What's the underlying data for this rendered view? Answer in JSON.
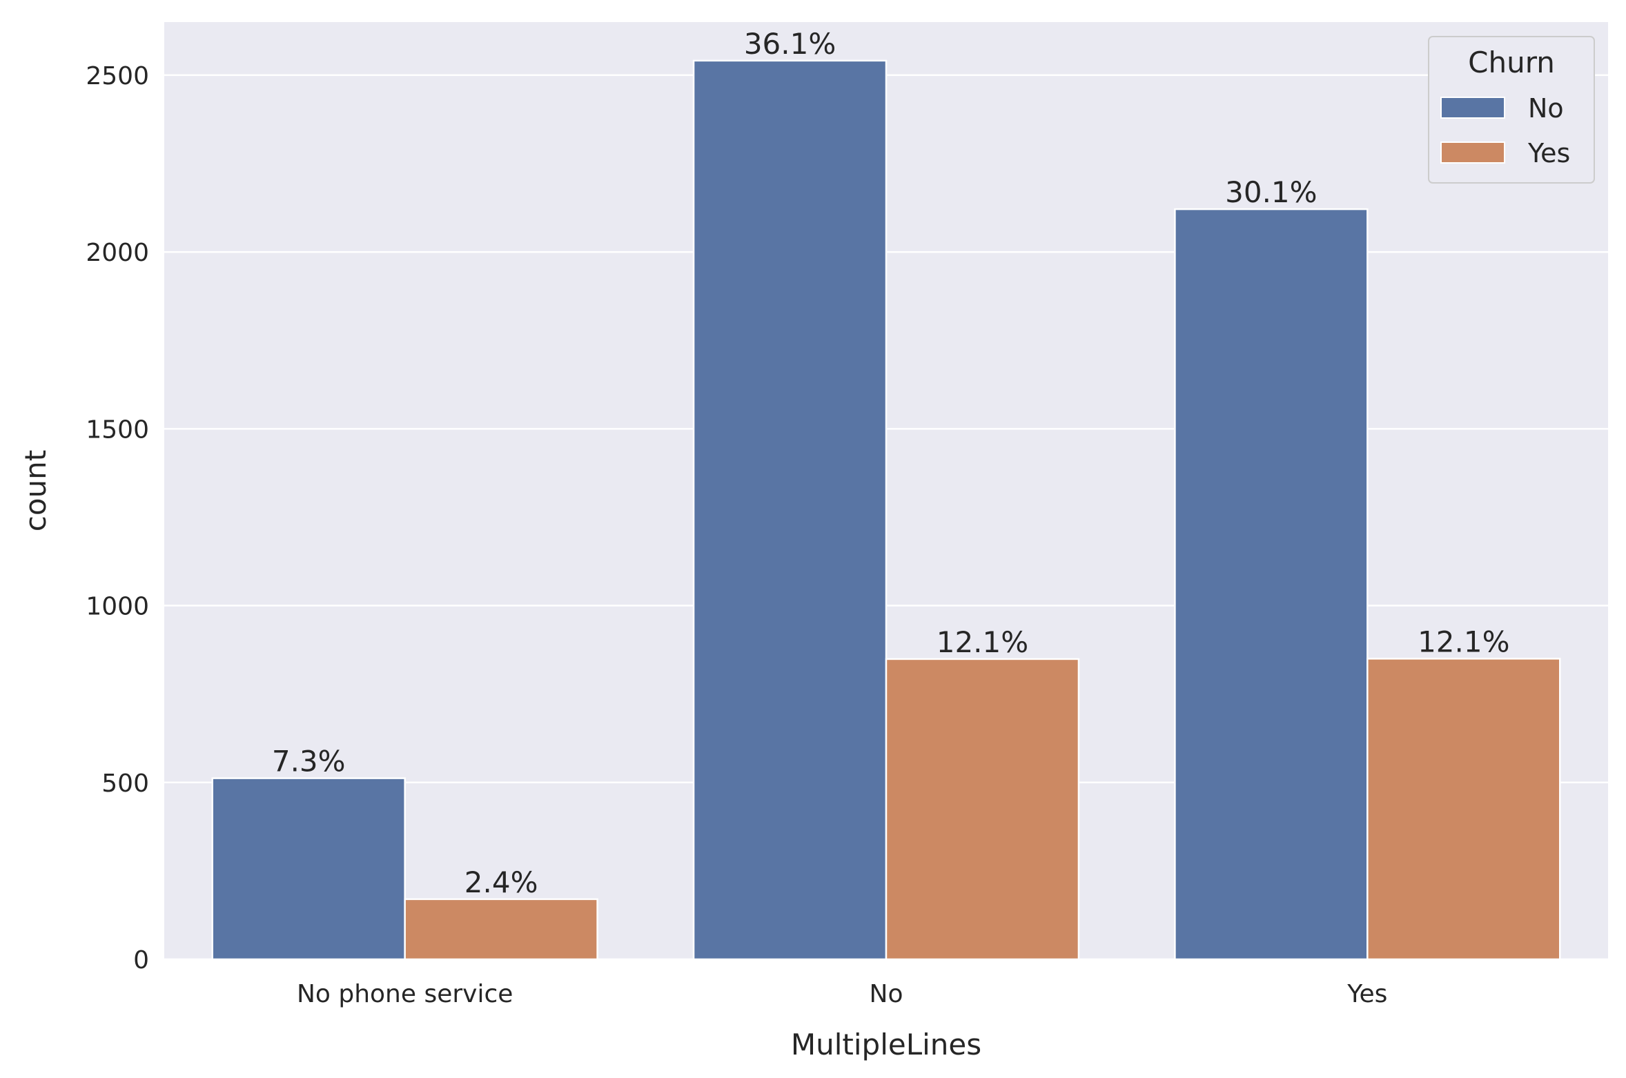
{
  "chart_data": {
    "type": "bar",
    "title": "",
    "xlabel": "MultipleLines",
    "ylabel": "count",
    "categories": [
      "No phone service",
      "No",
      "Yes"
    ],
    "ylim": [
      0,
      2650
    ],
    "yticks": [
      0,
      500,
      1000,
      1500,
      2000,
      2500
    ],
    "grid": true,
    "legend": {
      "title": "Churn",
      "placement": "top-right"
    },
    "series": [
      {
        "name": "No",
        "color": "#5975a4",
        "values": [
          512,
          2541,
          2121
        ],
        "labels": [
          "7.3%",
          "36.1%",
          "30.1%"
        ]
      },
      {
        "name": "Yes",
        "color": "#cc8963",
        "values": [
          170,
          849,
          850
        ],
        "labels": [
          "2.4%",
          "12.1%",
          "12.1%"
        ]
      }
    ]
  },
  "colors": {
    "plot_background": "#eaeaf2",
    "grid": "#ffffff",
    "text": "#262626"
  }
}
